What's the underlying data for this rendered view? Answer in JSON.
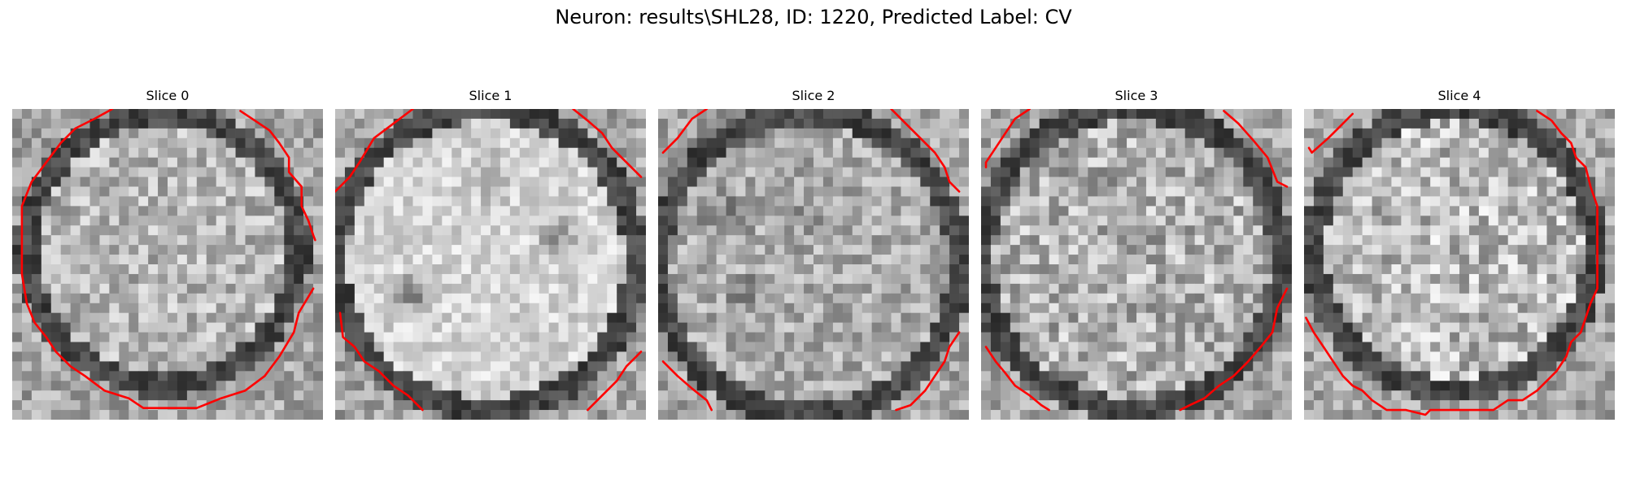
{
  "figure": {
    "title": "Neuron: results\\SHL28, ID: 1220, Predicted Label: CV"
  },
  "panels": [
    {
      "title": "Slice 0",
      "image": "grayscale-patch-with-red-contour"
    },
    {
      "title": "Slice 1",
      "image": "grayscale-patch-with-red-contour"
    },
    {
      "title": "Slice 2",
      "image": "grayscale-patch-with-red-contour"
    },
    {
      "title": "Slice 3",
      "image": "grayscale-patch-with-red-contour"
    },
    {
      "title": "Slice 4",
      "image": "grayscale-patch-with-red-contour"
    }
  ],
  "colors": {
    "contour": "#ff0000",
    "ring": "#2a2a2a",
    "background": "#ffffff"
  }
}
